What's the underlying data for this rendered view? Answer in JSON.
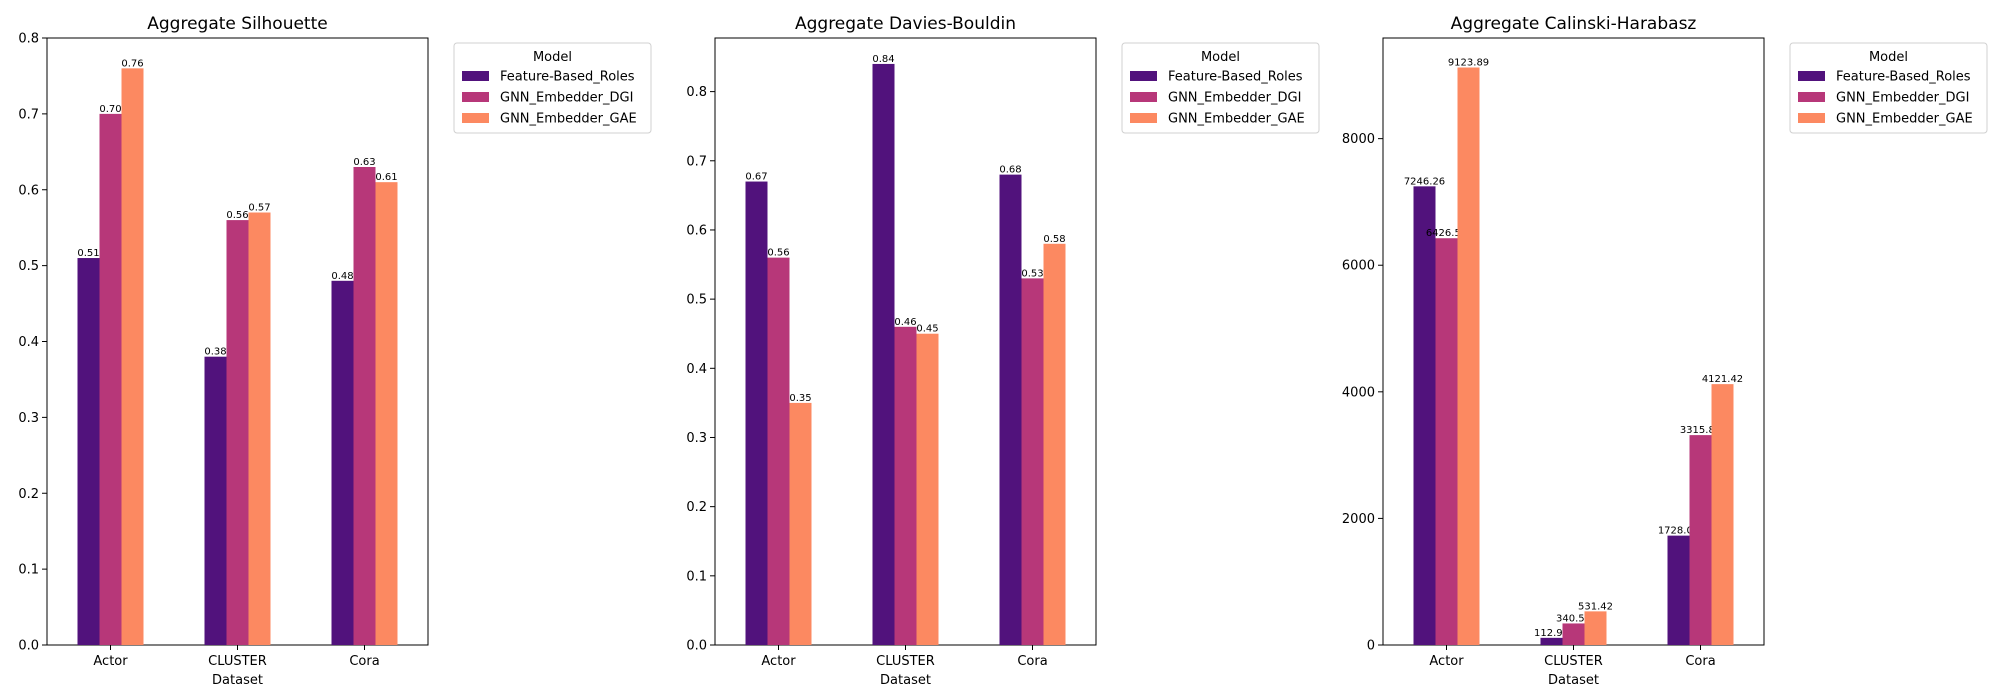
{
  "chart_data": [
    {
      "type": "bar",
      "title": "Aggregate Silhouette",
      "xlabel": "Dataset",
      "ylabel": "",
      "categories": [
        "Actor",
        "CLUSTER",
        "Cora"
      ],
      "series": [
        {
          "name": "Feature-Based_Roles",
          "values": [
            0.51,
            0.38,
            0.48
          ],
          "labels": [
            "0.51",
            "0.38",
            "0.48"
          ]
        },
        {
          "name": "GNN_Embedder_DGI",
          "values": [
            0.7,
            0.56,
            0.63
          ],
          "labels": [
            "0.70",
            "0.56",
            "0.63"
          ]
        },
        {
          "name": "GNN_Embedder_GAE",
          "values": [
            0.76,
            0.57,
            0.61
          ],
          "labels": [
            "0.76",
            "0.57",
            "0.61"
          ]
        }
      ],
      "ylim": [
        0,
        0.8
      ],
      "yticks": [
        0.0,
        0.1,
        0.2,
        0.3,
        0.4,
        0.5,
        0.6,
        0.7,
        0.8
      ],
      "ytick_labels": [
        "0.0",
        "0.1",
        "0.2",
        "0.3",
        "0.4",
        "0.5",
        "0.6",
        "0.7",
        "0.8"
      ],
      "legend": {
        "title": "Model",
        "placement": "outside-top-right"
      }
    },
    {
      "type": "bar",
      "title": "Aggregate Davies-Bouldin",
      "xlabel": "Dataset",
      "ylabel": "",
      "categories": [
        "Actor",
        "CLUSTER",
        "Cora"
      ],
      "series": [
        {
          "name": "Feature-Based_Roles",
          "values": [
            0.67,
            0.84,
            0.68
          ],
          "labels": [
            "0.67",
            "0.84",
            "0.68"
          ]
        },
        {
          "name": "GNN_Embedder_DGI",
          "values": [
            0.56,
            0.46,
            0.53
          ],
          "labels": [
            "0.56",
            "0.46",
            "0.53"
          ]
        },
        {
          "name": "GNN_Embedder_GAE",
          "values": [
            0.35,
            0.45,
            0.58
          ],
          "labels": [
            "0.35",
            "0.45",
            "0.58"
          ]
        }
      ],
      "ylim": [
        0,
        0.8775
      ],
      "yticks": [
        0.0,
        0.1,
        0.2,
        0.3,
        0.4,
        0.5,
        0.6,
        0.7,
        0.8
      ],
      "ytick_labels": [
        "0.0",
        "0.1",
        "0.2",
        "0.3",
        "0.4",
        "0.5",
        "0.6",
        "0.7",
        "0.8"
      ],
      "legend": {
        "title": "Model",
        "placement": "outside-top-right"
      }
    },
    {
      "type": "bar",
      "title": "Aggregate Calinski-Harabasz",
      "xlabel": "Dataset",
      "ylabel": "",
      "categories": [
        "Actor",
        "CLUSTER",
        "Cora"
      ],
      "series": [
        {
          "name": "Feature-Based_Roles",
          "values": [
            7246.26,
            112.96,
            1728.03
          ],
          "labels": [
            "7246.26",
            "112.96",
            "1728.03"
          ]
        },
        {
          "name": "GNN_Embedder_DGI",
          "values": [
            6426.5,
            340.51,
            3315.86
          ],
          "labels": [
            "6426.50",
            "340.51",
            "3315.86"
          ]
        },
        {
          "name": "GNN_Embedder_GAE",
          "values": [
            9123.89,
            531.42,
            4121.42
          ],
          "labels": [
            "9123.89",
            "531.42",
            "4121.42"
          ]
        }
      ],
      "ylim": [
        0,
        9590
      ],
      "yticks": [
        0,
        2000,
        4000,
        6000,
        8000
      ],
      "ytick_labels": [
        "0",
        "2000",
        "4000",
        "6000",
        "8000"
      ],
      "legend": {
        "title": "Model",
        "placement": "outside-top-right"
      }
    }
  ],
  "colors": {
    "Feature-Based_Roles": "#51127c",
    "GNN_Embedder_DGI": "#b73779",
    "GNN_Embedder_GAE": "#fc8961"
  }
}
